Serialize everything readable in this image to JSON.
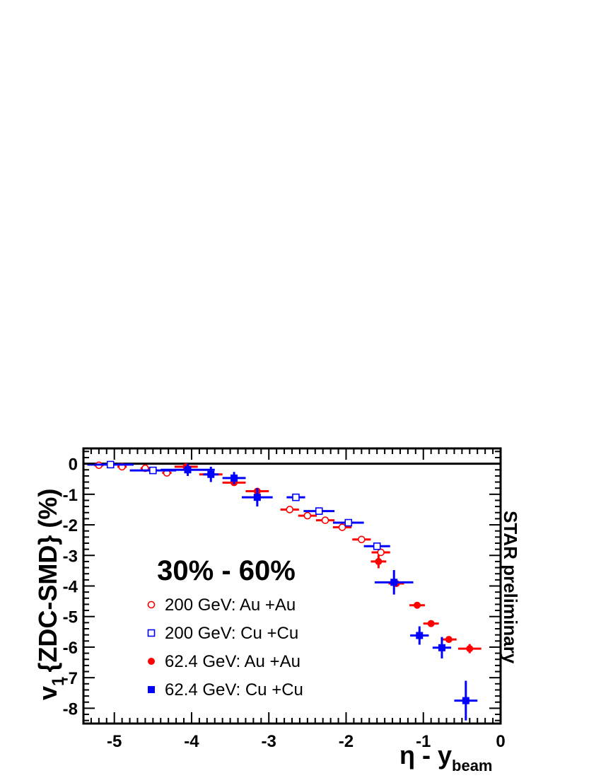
{
  "chart_data": {
    "type": "scatter",
    "title": "30% - 60%",
    "side_label": "STAR preliminary",
    "ylabel": {
      "main": "v",
      "sub": "1",
      "rest": "{ZDC-SMD} (%)"
    },
    "xlabel": {
      "main": "η - y",
      "sub": "beam"
    },
    "xlim": [
      -5.4,
      0
    ],
    "ylim": [
      -8.5,
      0.5
    ],
    "x_ticks": [
      {
        "value": -5,
        "label": "-5"
      },
      {
        "value": -4,
        "label": "-4"
      },
      {
        "value": -3,
        "label": "-3"
      },
      {
        "value": -2,
        "label": "-2"
      },
      {
        "value": -1,
        "label": "-1"
      },
      {
        "value": 0,
        "label": "0"
      }
    ],
    "y_ticks": [
      {
        "value": 0,
        "label": "0"
      },
      {
        "value": -1,
        "label": "-1"
      },
      {
        "value": -2,
        "label": "-2"
      },
      {
        "value": -3,
        "label": "-3"
      },
      {
        "value": -4,
        "label": "-4"
      },
      {
        "value": -5,
        "label": "-5"
      },
      {
        "value": -6,
        "label": "-6"
      },
      {
        "value": -7,
        "label": "-7"
      },
      {
        "value": -8,
        "label": "-8"
      }
    ],
    "zero_line": true,
    "series": [
      {
        "name": "200 GeV: Au +Au",
        "marker": "open-circle",
        "color": "#ff0000",
        "points": [
          {
            "x": -5.2,
            "y": -0.05,
            "xerr": 0.06,
            "yerr": 0.03
          },
          {
            "x": -4.9,
            "y": -0.1,
            "xerr": 0.06,
            "yerr": 0.03
          },
          {
            "x": -4.6,
            "y": -0.15,
            "xerr": 0.06,
            "yerr": 0.03
          },
          {
            "x": -4.32,
            "y": -0.3,
            "xerr": 0.06,
            "yerr": 0.03
          },
          {
            "x": -2.73,
            "y": -1.5,
            "xerr": 0.12,
            "yerr": 0.05
          },
          {
            "x": -2.5,
            "y": -1.7,
            "xerr": 0.12,
            "yerr": 0.05
          },
          {
            "x": -2.27,
            "y": -1.85,
            "xerr": 0.12,
            "yerr": 0.05
          },
          {
            "x": -2.05,
            "y": -2.08,
            "xerr": 0.12,
            "yerr": 0.05
          },
          {
            "x": -1.8,
            "y": -2.48,
            "xerr": 0.12,
            "yerr": 0.05
          },
          {
            "x": -1.55,
            "y": -2.9,
            "xerr": 0.12,
            "yerr": 0.05
          }
        ]
      },
      {
        "name": "200 GeV: Cu +Cu",
        "marker": "open-square",
        "color": "#0000ff",
        "points": [
          {
            "x": -5.05,
            "y": -0.03,
            "xerr": 0.3,
            "yerr": 0.03
          },
          {
            "x": -4.5,
            "y": -0.22,
            "xerr": 0.3,
            "yerr": 0.03
          },
          {
            "x": -2.65,
            "y": -1.1,
            "xerr": 0.12,
            "yerr": 0.05
          },
          {
            "x": -2.35,
            "y": -1.55,
            "xerr": 0.2,
            "yerr": 0.05
          },
          {
            "x": -1.97,
            "y": -1.93,
            "xerr": 0.2,
            "yerr": 0.05
          },
          {
            "x": -1.6,
            "y": -2.7,
            "xerr": 0.17,
            "yerr": 0.05
          }
        ]
      },
      {
        "name": "62.4 GeV: Au +Au",
        "marker": "filled-circle",
        "color": "#ff0000",
        "points": [
          {
            "x": -4.07,
            "y": -0.1,
            "xerr": 0.15,
            "yerr": 0.08
          },
          {
            "x": -3.75,
            "y": -0.35,
            "xerr": 0.15,
            "yerr": 0.08
          },
          {
            "x": -3.45,
            "y": -0.62,
            "xerr": 0.15,
            "yerr": 0.08
          },
          {
            "x": -3.15,
            "y": -0.9,
            "xerr": 0.15,
            "yerr": 0.08
          },
          {
            "x": -1.58,
            "y": -3.2,
            "xerr": 0.1,
            "yerr": 0.22
          },
          {
            "x": -1.35,
            "y": -3.92,
            "xerr": 0.1,
            "yerr": 0.1
          },
          {
            "x": -1.08,
            "y": -4.63,
            "xerr": 0.1,
            "yerr": 0.08
          },
          {
            "x": -0.9,
            "y": -5.23,
            "xerr": 0.1,
            "yerr": 0.1
          },
          {
            "x": -0.67,
            "y": -5.75,
            "xerr": 0.1,
            "yerr": 0.1
          },
          {
            "x": -0.4,
            "y": -6.05,
            "xerr": 0.15,
            "yerr": 0.15
          }
        ]
      },
      {
        "name": "62.4 GeV: Cu +Cu",
        "marker": "filled-square",
        "color": "#0000ff",
        "points": [
          {
            "x": -4.05,
            "y": -0.2,
            "xerr": 0.35,
            "yerr": 0.2
          },
          {
            "x": -3.75,
            "y": -0.35,
            "xerr": 0.1,
            "yerr": 0.25
          },
          {
            "x": -3.45,
            "y": -0.47,
            "xerr": 0.15,
            "yerr": 0.2
          },
          {
            "x": -3.15,
            "y": -1.1,
            "xerr": 0.2,
            "yerr": 0.3
          },
          {
            "x": -1.38,
            "y": -3.88,
            "xerr": 0.25,
            "yerr": 0.4
          },
          {
            "x": -1.05,
            "y": -5.62,
            "xerr": 0.12,
            "yerr": 0.3
          },
          {
            "x": -0.76,
            "y": -6.02,
            "xerr": 0.12,
            "yerr": 0.35
          },
          {
            "x": -0.45,
            "y": -7.75,
            "xerr": 0.15,
            "yerr": 0.65
          }
        ]
      }
    ]
  }
}
